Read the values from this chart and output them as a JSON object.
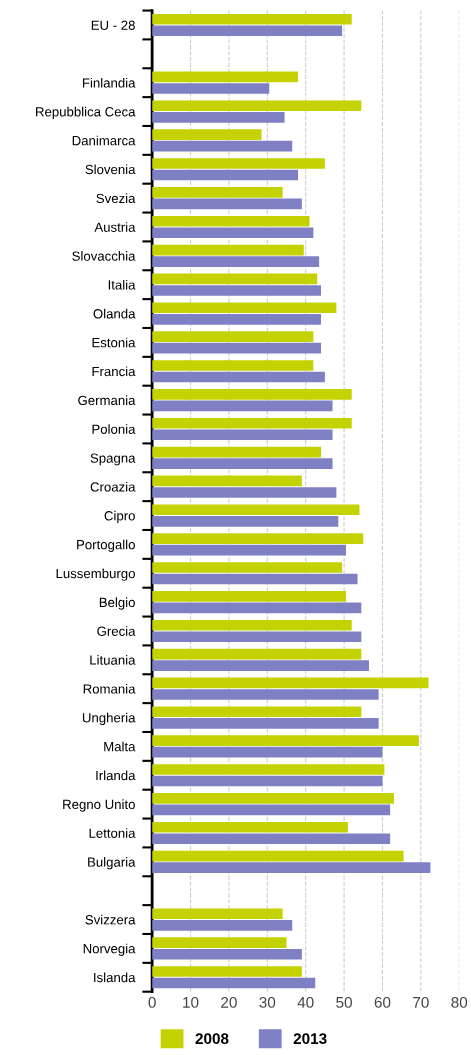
{
  "chart_data": {
    "type": "bar",
    "orientation": "horizontal",
    "categories": [
      "EU - 28",
      null,
      "Finlandia",
      "Repubblica Ceca",
      "Danimarca",
      "Slovenia",
      "Svezia",
      "Austria",
      "Slovacchia",
      "Italia",
      "Olanda",
      "Estonia",
      "Francia",
      "Germania",
      "Polonia",
      "Spagna",
      "Croazia",
      "Cipro",
      "Portogallo",
      "Lussemburgo",
      "Belgio",
      "Grecia",
      "Lituania",
      "Romania",
      "Ungheria",
      "Malta",
      "Irlanda",
      "Regno Unito",
      "Lettonia",
      "Bulgaria",
      null,
      "Svizzera",
      "Norvegia",
      "Islanda"
    ],
    "series": [
      {
        "name": "2008",
        "color": "#c3d200",
        "values": [
          52,
          null,
          38,
          54.5,
          28.5,
          45,
          34,
          41,
          39.5,
          43,
          48,
          42,
          42,
          52,
          52,
          44,
          39,
          54,
          55,
          49.5,
          50.5,
          52,
          54.5,
          72,
          54.5,
          69.5,
          60.5,
          63,
          51,
          65.5,
          null,
          34,
          35,
          39
        ]
      },
      {
        "name": "2013",
        "color": "#7f80c4",
        "values": [
          49.5,
          null,
          30.5,
          34.5,
          36.5,
          38,
          39,
          42,
          43.5,
          44,
          44,
          44,
          45,
          47,
          47,
          47,
          48,
          48.5,
          50.5,
          53.5,
          54.5,
          54.5,
          56.5,
          59,
          59,
          60,
          60,
          62,
          62,
          72.5,
          null,
          36.5,
          39,
          42.5
        ]
      }
    ],
    "xlim": [
      0,
      80
    ],
    "xticks": [
      0,
      10,
      20,
      30,
      40,
      50,
      60,
      70,
      80
    ],
    "grid": "x",
    "legend": "bottom"
  }
}
